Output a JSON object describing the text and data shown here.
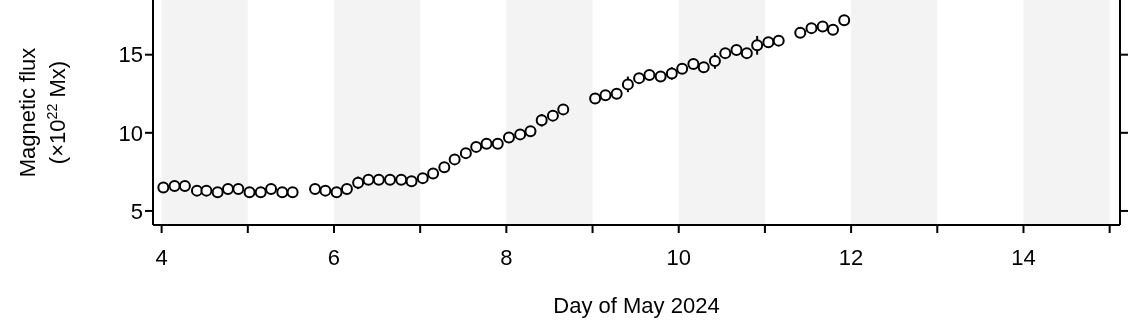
{
  "chart_data": {
    "type": "scatter",
    "xlabel": "Day of May 2024",
    "ylabel": "Magnetic flux\n(×10$^{22}$ Mx)",
    "x": [
      4.02,
      4.15,
      4.27,
      4.41,
      4.52,
      4.65,
      4.77,
      4.89,
      5.02,
      5.15,
      5.27,
      5.4,
      5.52,
      5.78,
      5.9,
      6.03,
      6.15,
      6.28,
      6.4,
      6.52,
      6.65,
      6.78,
      6.9,
      7.03,
      7.15,
      7.28,
      7.4,
      7.53,
      7.65,
      7.77,
      7.9,
      8.03,
      8.16,
      8.28,
      8.41,
      8.54,
      8.66,
      9.03,
      9.15,
      9.28,
      9.41,
      9.54,
      9.66,
      9.79,
      9.92,
      10.04,
      10.17,
      10.29,
      10.42,
      10.54,
      10.67,
      10.79,
      10.91,
      11.04,
      11.16,
      11.41,
      11.54,
      11.67,
      11.79,
      11.92
    ],
    "series": [
      {
        "color": "#000000",
        "values": [
          6.5,
          6.6,
          6.6,
          6.3,
          6.3,
          6.2,
          6.4,
          6.4,
          6.2,
          6.2,
          6.4,
          6.2,
          6.2,
          6.4,
          6.3,
          6.2,
          6.4,
          6.8,
          7.0,
          7.0,
          7.0,
          7.0,
          6.9,
          7.1,
          7.4,
          7.8,
          8.3,
          8.7,
          9.1,
          9.3,
          9.3,
          9.7,
          9.9,
          10.1,
          10.8,
          11.1,
          11.5,
          12.2,
          12.4,
          12.5,
          13.1,
          13.5,
          13.7,
          13.6,
          13.8,
          14.1,
          14.4,
          14.2,
          14.6,
          15.1,
          15.3,
          15.1,
          15.6,
          15.8,
          15.9,
          16.4,
          16.7,
          16.8,
          16.6,
          17.2
        ],
        "errors": [
          0.15,
          0.15,
          0.25,
          0.15,
          0.15,
          0.15,
          0.25,
          0.25,
          0.15,
          0.15,
          0.15,
          0.15,
          0.15,
          0.15,
          0.15,
          0.15,
          0.15,
          0.4,
          0.15,
          0.15,
          0.15,
          0.15,
          0.15,
          0.15,
          0.15,
          0.3,
          0.2,
          0.15,
          0.15,
          0.15,
          0.15,
          0.15,
          0.15,
          0.3,
          0.4,
          0.15,
          0.15,
          0.15,
          0.15,
          0.15,
          0.5,
          0.2,
          0.15,
          0.15,
          0.4,
          0.15,
          0.15,
          0.15,
          0.5,
          0.2,
          0.15,
          0.15,
          0.6,
          0.15,
          0.15,
          0.15,
          0.15,
          0.15,
          0.2,
          0.3
        ]
      }
    ],
    "xlim": [
      3.9,
      15.12
    ],
    "ylim": [
      4.1,
      18.5
    ],
    "xticks": [
      4,
      {
        "value": 5,
        "label": null
      },
      6,
      {
        "value": 7,
        "label": null
      },
      8,
      {
        "value": 9,
        "label": null
      },
      10,
      {
        "value": 11,
        "label": null
      },
      12,
      {
        "value": 13,
        "label": null
      },
      14,
      {
        "value": 15,
        "label": null
      }
    ],
    "yticks": [
      5,
      10,
      15
    ],
    "bands": [
      {
        "axis": "x",
        "from": 4,
        "to": 5,
        "color": "#f3f3f3"
      },
      {
        "axis": "x",
        "from": 6,
        "to": 7,
        "color": "#f3f3f3"
      },
      {
        "axis": "x",
        "from": 8,
        "to": 9,
        "color": "#f3f3f3"
      },
      {
        "axis": "x",
        "from": 10,
        "to": 11,
        "color": "#f3f3f3"
      },
      {
        "axis": "x",
        "from": 12,
        "to": 13,
        "color": "#f3f3f3"
      },
      {
        "axis": "x",
        "from": 14,
        "to": 15,
        "color": "#f3f3f3"
      }
    ],
    "marker": "circle",
    "grid": false,
    "legend": false
  }
}
